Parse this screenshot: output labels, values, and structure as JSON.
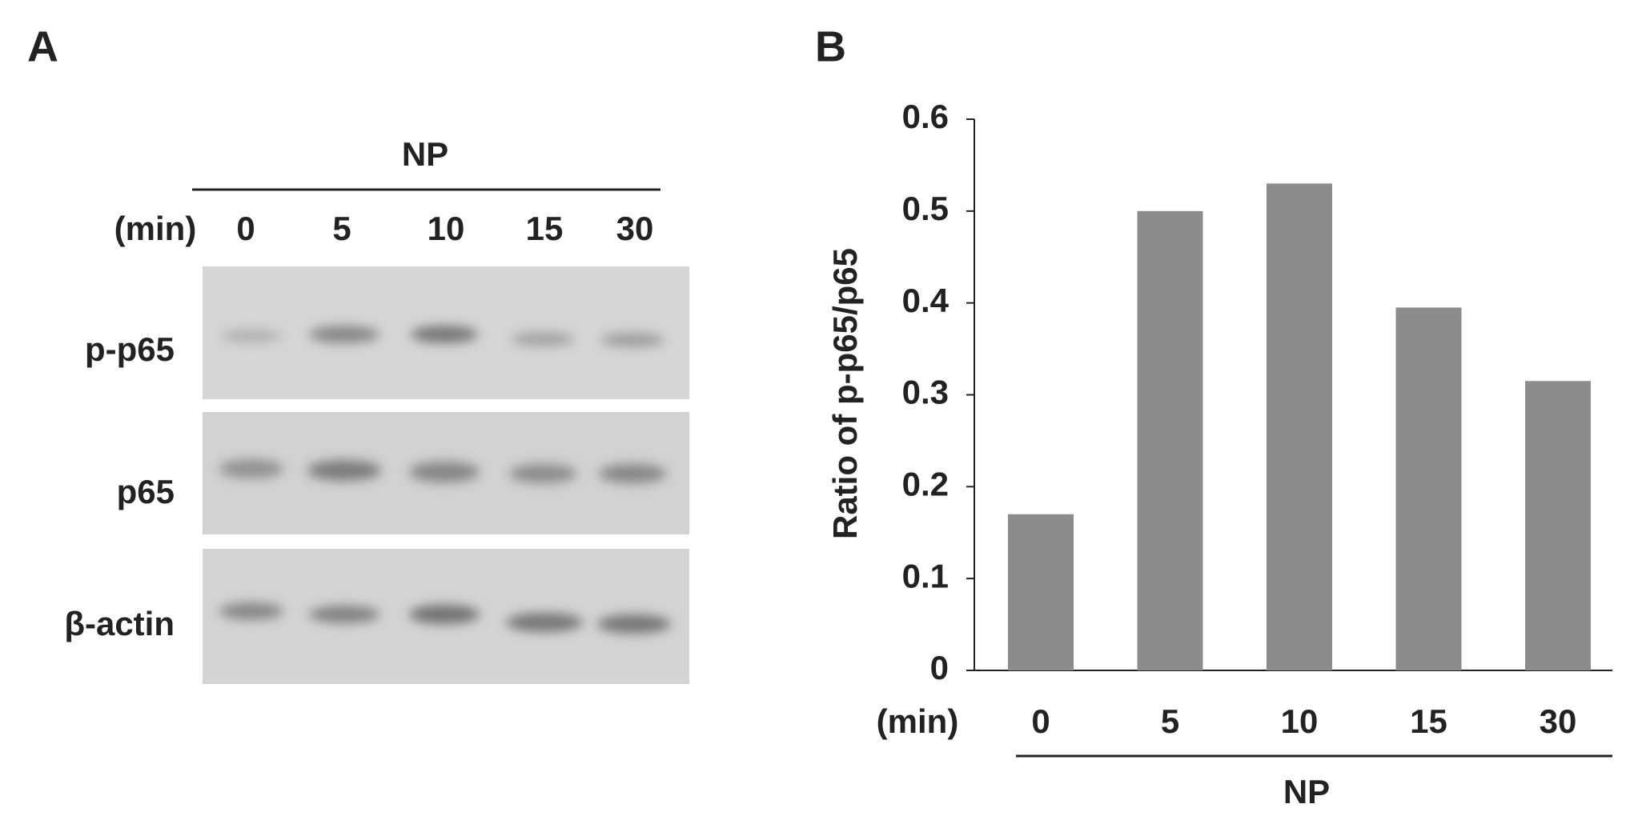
{
  "panel_a": {
    "label": "A",
    "group": "NP",
    "unit": "(min)",
    "lanes": [
      "0",
      "5",
      "10",
      "15",
      "30"
    ],
    "rows": [
      "p-p65",
      "p65",
      "β-actin"
    ]
  },
  "chart_data": {
    "type": "bar",
    "panel": "B",
    "y_label": "Ratio of p-p65/p65",
    "x_unit": "(min)",
    "group": "NP",
    "categories": [
      "0",
      "5",
      "10",
      "15",
      "30"
    ],
    "values": [
      0.17,
      0.5,
      0.53,
      0.395,
      0.315
    ],
    "color": "#8c8c8c",
    "ylim": [
      0,
      0.6
    ],
    "yticks": [
      0,
      0.1,
      0.2,
      0.3,
      0.4,
      0.5,
      0.6
    ]
  }
}
